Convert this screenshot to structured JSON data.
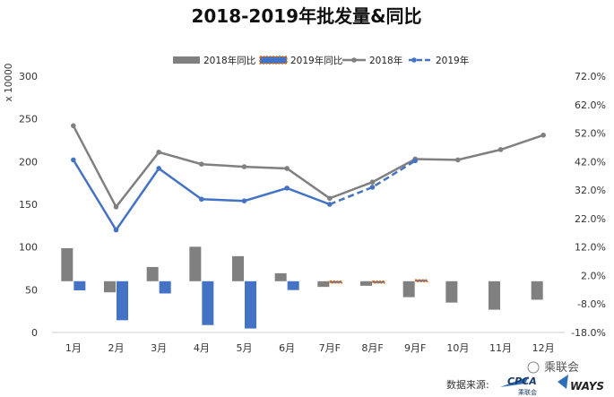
{
  "chart_data": {
    "type": "bar+line",
    "title": "2018-2019年批发量&同比",
    "categories": [
      "1月",
      "2月",
      "3月",
      "4月",
      "5月",
      "6月",
      "7月F",
      "8月F",
      "9月F",
      "10月",
      "11月",
      "12月"
    ],
    "left_axis": {
      "unit_label": "x 10000",
      "ylim": [
        0,
        300
      ],
      "ticks": [
        "0",
        "50",
        "100",
        "150",
        "200",
        "250",
        "300"
      ]
    },
    "right_axis": {
      "ylim": [
        -18,
        72
      ],
      "ticks": [
        "-18.0%",
        "-8.0%",
        "2.0%",
        "12.0%",
        "22.0%",
        "32.0%",
        "42.0%",
        "52.0%",
        "62.0%",
        "72.0%"
      ]
    },
    "series": [
      {
        "name": "2018年同比",
        "type": "bar",
        "axis": "right",
        "color": "#808080",
        "values": [
          11.6,
          -3.9,
          5.0,
          12.1,
          8.8,
          2.8,
          -2.0,
          -1.6,
          -5.6,
          -7.5,
          -10.0,
          -6.5
        ]
      },
      {
        "name": "2019年同比",
        "type": "bar",
        "axis": "right",
        "color": "#4472C4",
        "values": [
          -3.2,
          -13.7,
          -4.3,
          -15.4,
          -16.6,
          -3.1,
          -0.3,
          -0.4,
          0.5,
          null,
          null,
          null
        ]
      },
      {
        "name": "2018年",
        "type": "line",
        "axis": "left",
        "color": "#808080",
        "values": [
          242,
          147,
          211,
          197,
          194,
          192,
          157,
          176,
          203,
          202,
          214,
          231
        ]
      },
      {
        "name": "2019年",
        "type": "line",
        "axis": "left",
        "color": "#4472C4",
        "values": [
          202,
          120,
          192,
          156,
          154,
          169,
          150,
          170,
          201,
          null,
          null,
          null
        ]
      }
    ],
    "legend_position": "top",
    "grid": false
  },
  "source": {
    "label": "数据来源:",
    "brand_cpca": "CPCA",
    "brand_cpca_sub": "乘联会",
    "brand_ways": "WAYS",
    "watermark": "乘联会"
  },
  "colors": {
    "gray": "#808080",
    "blue": "#4472C4",
    "forecast_bar_border": "#E46C0A"
  }
}
